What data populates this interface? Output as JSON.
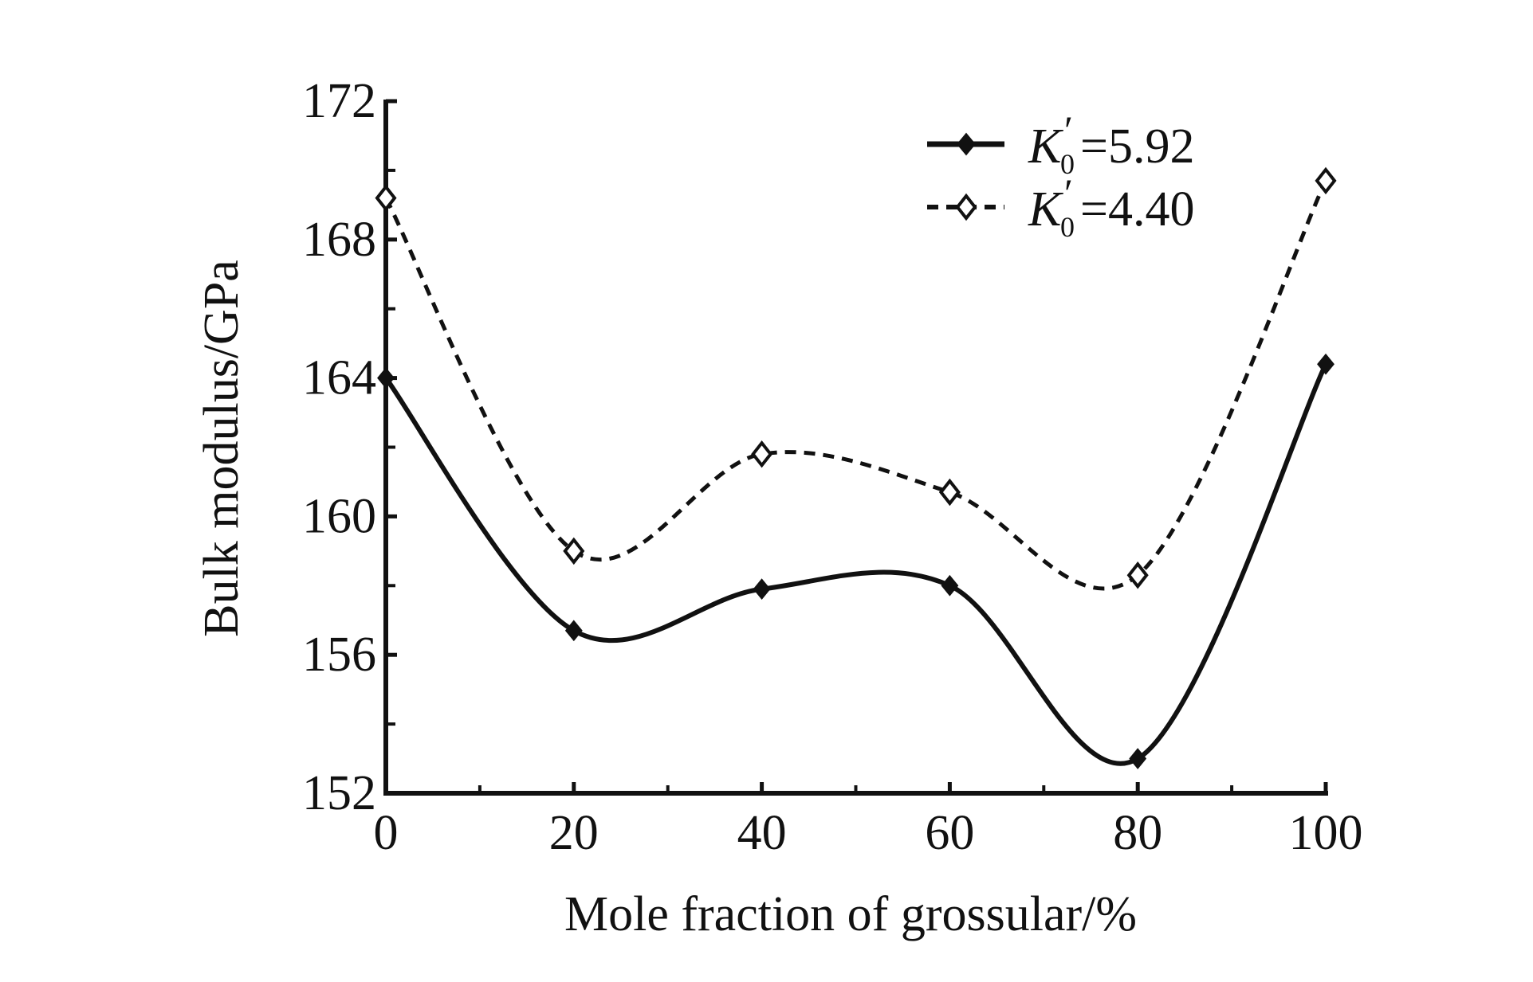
{
  "chart_data": {
    "type": "line",
    "title": "",
    "xlabel": "Mole fraction of grossular/%",
    "ylabel": "Bulk modulus/GPa",
    "x": [
      0,
      20,
      40,
      60,
      80,
      100
    ],
    "xlim": [
      0,
      100
    ],
    "ylim": [
      152,
      172
    ],
    "xticks": [
      "0",
      "20",
      "40",
      "60",
      "80",
      "100"
    ],
    "yticks": [
      "152",
      "156",
      "160",
      "164",
      "168",
      "172"
    ],
    "grid": false,
    "legend_position": "top-right",
    "series": [
      {
        "name": "K0′=5.92",
        "legend_symbol": "K",
        "legend_sub": "0",
        "legend_prime": "′",
        "legend_value": "=5.92",
        "line_style": "solid",
        "marker": "filled-diamond",
        "color": "#111111",
        "values": [
          164.0,
          156.7,
          157.9,
          158.0,
          153.0,
          164.4
        ]
      },
      {
        "name": "K0′=4.40",
        "legend_symbol": "K",
        "legend_sub": "0",
        "legend_prime": "′",
        "legend_value": "=4.40",
        "line_style": "dashed",
        "marker": "open-diamond",
        "color": "#111111",
        "values": [
          169.2,
          159.0,
          161.8,
          160.7,
          158.3,
          169.7
        ]
      }
    ]
  }
}
